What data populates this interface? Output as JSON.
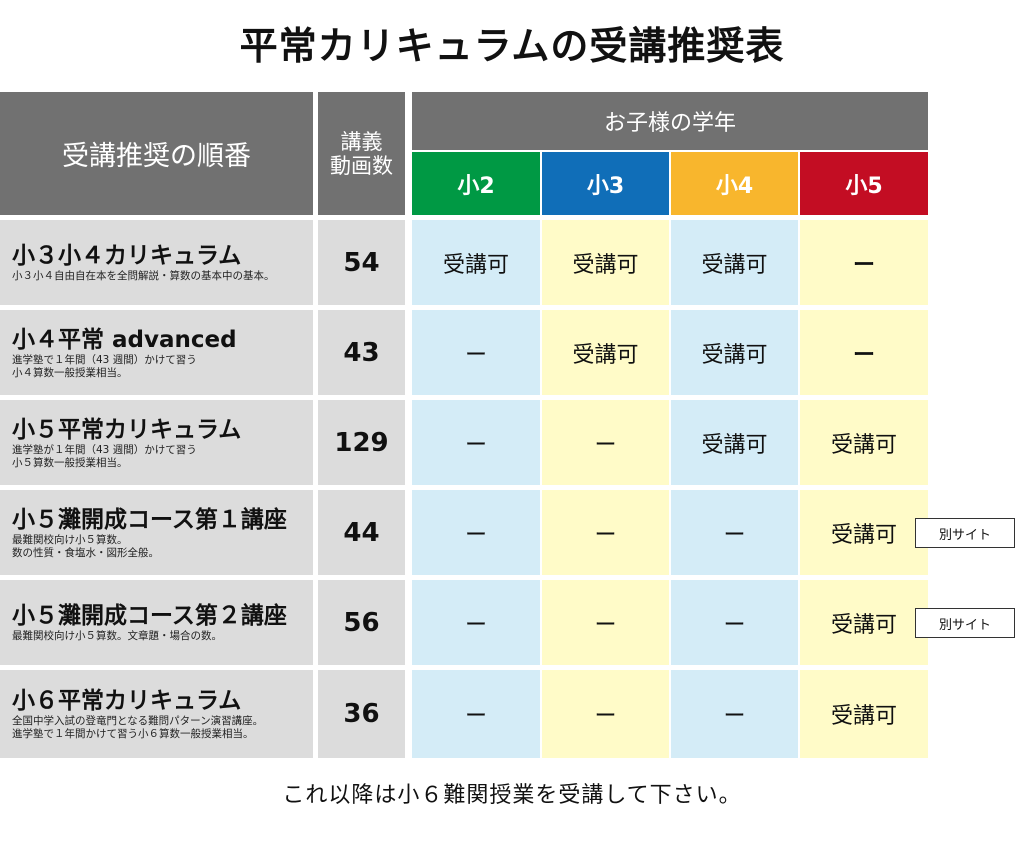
{
  "title": "平常カリキュラムの受講推奨表",
  "header": {
    "order_label": "受講推奨の順番",
    "count_label_line1": "講義",
    "count_label_line2": "動画数",
    "grade_band_label": "お子様の学年",
    "grades": [
      {
        "label": "小2",
        "color": "#009944"
      },
      {
        "label": "小3",
        "color": "#106eb8"
      },
      {
        "label": "小4",
        "color": "#f8b62d"
      },
      {
        "label": "小5",
        "color": "#c30d23"
      }
    ]
  },
  "rows": [
    {
      "title": "小３小４カリキュラム",
      "desc": "小３小４自由自在本を全問解説・算数の基本中の基本。",
      "count": "54",
      "availability": [
        "受講可",
        "受講可",
        "受講可",
        "ー"
      ],
      "external_link": null
    },
    {
      "title": "小４平常 advanced",
      "desc": "進学塾で１年間（43 週間）かけて習う\n小４算数一般授業相当。",
      "count": "43",
      "availability": [
        "ー",
        "受講可",
        "受講可",
        "ー"
      ],
      "external_link": null
    },
    {
      "title": "小５平常カリキュラム",
      "desc": "進学塾が１年間（43 週間）かけて習う\n小５算数一般授業相当。",
      "count": "129",
      "availability": [
        "ー",
        "ー",
        "受講可",
        "受講可"
      ],
      "external_link": null
    },
    {
      "title": "小５灘開成コース第１講座",
      "desc": "最難関校向け小５算数。\n数の性質・食塩水・図形全般。",
      "count": "44",
      "availability": [
        "ー",
        "ー",
        "ー",
        "受講可"
      ],
      "external_link": "別サイト"
    },
    {
      "title": "小５灘開成コース第２講座",
      "desc": "最難関校向け小５算数。文章題・場合の数。",
      "count": "56",
      "availability": [
        "ー",
        "ー",
        "ー",
        "受講可"
      ],
      "external_link": "別サイト"
    },
    {
      "title": "小６平常カリキュラム",
      "desc": "全国中学入試の登竜門となる難問パターン演習講座。\n進学塾で１年間かけて習う小６算数一般授業相当。",
      "count": "36",
      "availability": [
        "ー",
        "ー",
        "ー",
        "受講可"
      ],
      "external_link": null
    }
  ],
  "footer_note": "これ以降は小６難関授業を受講して下さい。"
}
